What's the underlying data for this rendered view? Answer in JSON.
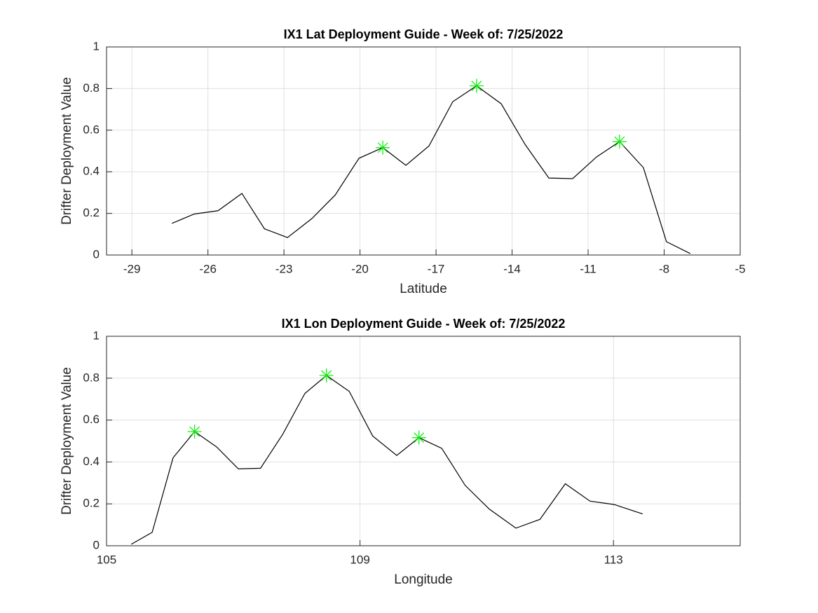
{
  "chart_data": [
    {
      "type": "line",
      "title": "IX1 Lat Deployment Guide - Week of: 7/25/2022",
      "xlabel": "Latitude",
      "ylabel": "Drifter Deployment Value",
      "xlim": [
        -30,
        -5
      ],
      "xticks": [
        -29,
        -26,
        -23,
        -20,
        -17,
        -14,
        -11,
        -8,
        -5
      ],
      "ylim": [
        0,
        1
      ],
      "yticks": [
        0,
        0.2,
        0.4,
        0.6,
        0.8,
        1
      ],
      "grid": true,
      "series": [
        {
          "color": "#000000",
          "marker": "none",
          "x": [
            -27.42,
            -26.54,
            -25.6,
            -24.66,
            -23.77,
            -22.86,
            -21.9,
            -20.98,
            -20.04,
            -19.1,
            -18.19,
            -17.28,
            -16.34,
            -15.4,
            -14.43,
            -13.49,
            -12.55,
            -11.61,
            -10.67,
            -9.76,
            -8.82,
            -7.91,
            -6.97
          ],
          "values": [
            0.152,
            0.197,
            0.213,
            0.296,
            0.126,
            0.084,
            0.175,
            0.288,
            0.465,
            0.516,
            0.431,
            0.524,
            0.737,
            0.813,
            0.727,
            0.532,
            0.37,
            0.367,
            0.471,
            0.545,
            0.42,
            0.064,
            0.007
          ]
        },
        {
          "color": "#00ee00",
          "marker": "star",
          "line": false,
          "x": [
            -19.1,
            -15.4,
            -9.76
          ],
          "values": [
            0.516,
            0.813,
            0.545
          ]
        }
      ]
    },
    {
      "type": "line",
      "title": "IX1 Lon Deployment Guide - Week of: 7/25/2022",
      "xlabel": "Longitude",
      "ylabel": "Drifter Deployment Value",
      "xlim": [
        105,
        115
      ],
      "xticks": [
        105,
        109,
        113
      ],
      "ylim": [
        0,
        1
      ],
      "yticks": [
        0,
        0.2,
        0.4,
        0.6,
        0.8,
        1
      ],
      "grid": true,
      "series": [
        {
          "color": "#000000",
          "marker": "none",
          "x": [
            105.39,
            105.72,
            106.05,
            106.39,
            106.74,
            107.08,
            107.43,
            107.78,
            108.13,
            108.47,
            108.83,
            109.2,
            109.58,
            109.93,
            110.29,
            110.66,
            111.04,
            111.46,
            111.84,
            112.24,
            112.63,
            113.01,
            113.46
          ],
          "values": [
            0.007,
            0.064,
            0.42,
            0.545,
            0.471,
            0.367,
            0.37,
            0.532,
            0.727,
            0.813,
            0.737,
            0.524,
            0.431,
            0.516,
            0.465,
            0.288,
            0.175,
            0.084,
            0.126,
            0.296,
            0.213,
            0.197,
            0.152
          ]
        },
        {
          "color": "#00ee00",
          "marker": "star",
          "line": false,
          "x": [
            106.39,
            108.47,
            109.93
          ],
          "values": [
            0.545,
            0.813,
            0.516
          ]
        }
      ]
    }
  ]
}
